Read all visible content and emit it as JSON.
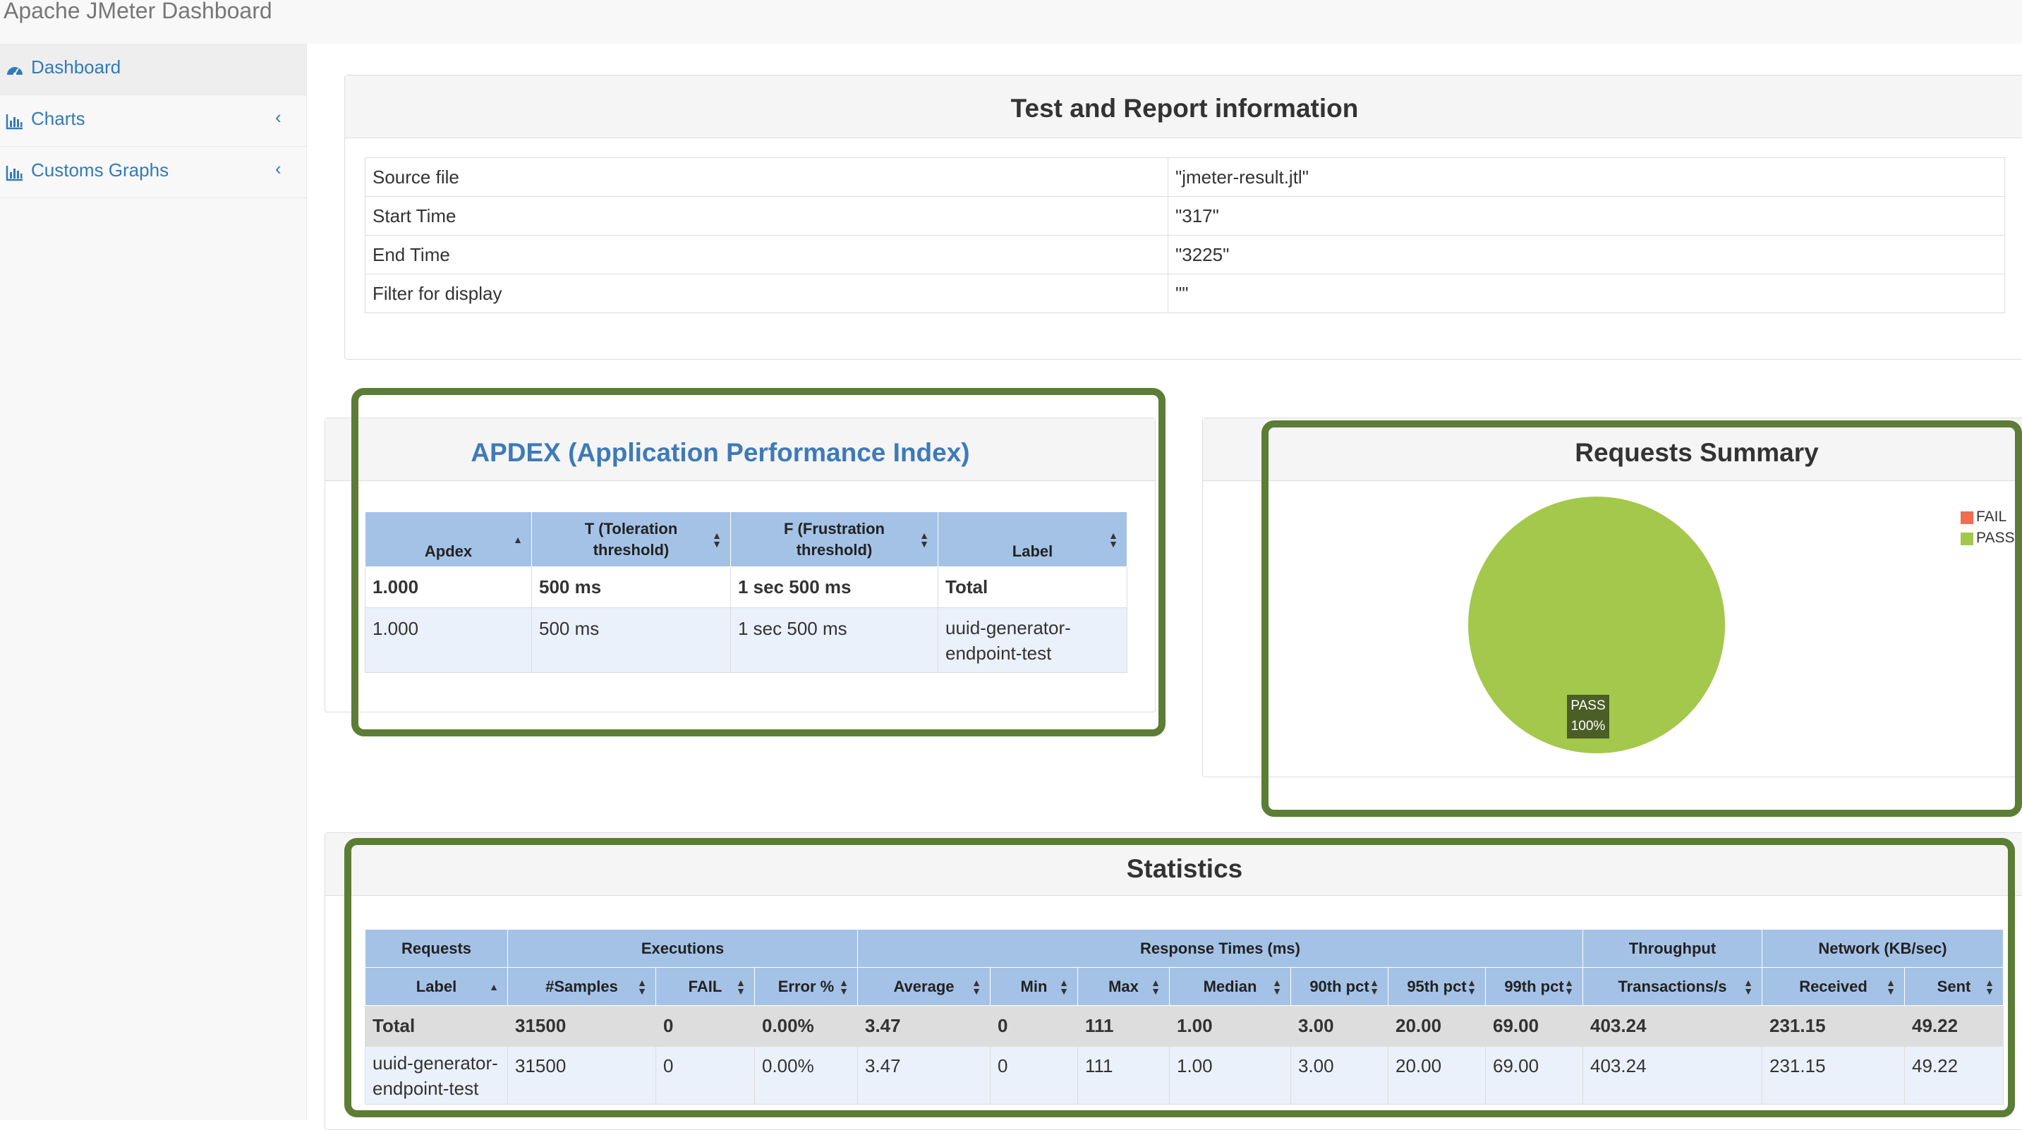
{
  "app": {
    "title": "Apache JMeter Dashboard"
  },
  "sidebar": {
    "items": [
      {
        "label": "Dashboard",
        "icon": "dashboard-icon",
        "active": true
      },
      {
        "label": "Charts",
        "icon": "bar-chart-icon",
        "chevron": "‹"
      },
      {
        "label": "Customs Graphs",
        "icon": "bar-chart-icon",
        "chevron": "‹"
      }
    ]
  },
  "info": {
    "title": "Test and Report information",
    "rows": [
      {
        "key": "Source file",
        "value": "\"jmeter-result.jtl\""
      },
      {
        "key": "Start Time",
        "value": "\"317\""
      },
      {
        "key": "End Time",
        "value": "\"3225\""
      },
      {
        "key": "Filter for display",
        "value": "\"\""
      }
    ]
  },
  "apdex": {
    "title": "APDEX (Application Performance Index)",
    "headers": [
      "Apdex",
      "T (Toleration threshold)",
      "F (Frustration threshold)",
      "Label"
    ],
    "header_lines": [
      [
        "Apdex"
      ],
      [
        "T (Toleration",
        "threshold)"
      ],
      [
        "F (Frustration",
        "threshold)"
      ],
      [
        "Label"
      ]
    ],
    "rows": [
      [
        "1.000",
        "500 ms",
        "1 sec 500 ms",
        "Total"
      ],
      [
        "1.000",
        "500 ms",
        "1 sec 500 ms",
        "uuid-generator-endpoint-test"
      ]
    ],
    "label_lines": [
      "uuid-generator-",
      "endpoint-test"
    ]
  },
  "summary": {
    "title": "Requests Summary",
    "legend": [
      {
        "label": "FAIL",
        "color": "#f26c4f"
      },
      {
        "label": "PASS",
        "color": "#a3c84c"
      }
    ],
    "pie_label": "PASS",
    "pie_percent": "100%"
  },
  "chart_data": {
    "type": "pie",
    "title": "Requests Summary",
    "categories": [
      "FAIL",
      "PASS"
    ],
    "values": [
      0,
      100
    ],
    "colors": [
      "#f26c4f",
      "#a3c84c"
    ]
  },
  "stats": {
    "title": "Statistics",
    "groups": [
      "Requests",
      "Executions",
      "Response Times (ms)",
      "Throughput",
      "Network (KB/sec)"
    ],
    "columns": [
      "Label",
      "#Samples",
      "FAIL",
      "Error %",
      "Average",
      "Min",
      "Max",
      "Median",
      "90th pct",
      "95th pct",
      "99th pct",
      "Transactions/s",
      "Received",
      "Sent"
    ],
    "rows": [
      [
        "Total",
        "31500",
        "0",
        "0.00%",
        "3.47",
        "0",
        "111",
        "1.00",
        "3.00",
        "20.00",
        "69.00",
        "403.24",
        "231.15",
        "49.22"
      ],
      [
        "uuid-generator-endpoint-test",
        "31500",
        "0",
        "0.00%",
        "3.47",
        "0",
        "111",
        "1.00",
        "3.00",
        "20.00",
        "69.00",
        "403.24",
        "231.15",
        "49.22"
      ]
    ],
    "label_lines": [
      "uuid-generator-",
      "endpoint-test"
    ]
  }
}
